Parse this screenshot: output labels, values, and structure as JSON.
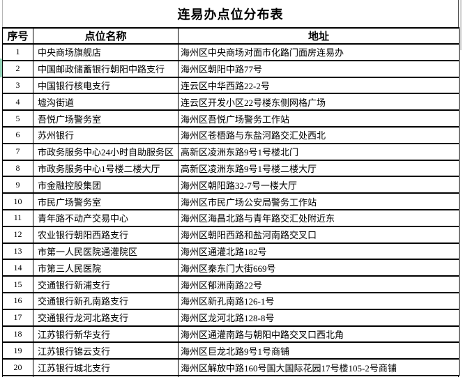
{
  "title": "连易办点位分布表",
  "table": {
    "headers": [
      "序号",
      "点位名称",
      "地址"
    ],
    "rows": [
      {
        "no": "1",
        "name": "中央商场旗舰店",
        "addr": "海州区中央商场对面市化路门面房连易办"
      },
      {
        "no": "2",
        "name": "中国邮政储蓄银行朝阳中路支行",
        "addr": "海州区朝阳中路77号"
      },
      {
        "no": "3",
        "name": "中国银行核电支行",
        "addr": "连云区中华西路22-2号"
      },
      {
        "no": "4",
        "name": "墟沟街道",
        "addr": "连云区开发小区22号楼东侧网格广场"
      },
      {
        "no": "5",
        "name": "吾悦广场警务室",
        "addr": "海州区吾悦广场警务工作站"
      },
      {
        "no": "6",
        "name": "苏州银行",
        "addr": "海州区苍梧路与东盐河路交汇处西北"
      },
      {
        "no": "7",
        "name": "市政务服务中心24小时自助服务区",
        "addr": "高新区凌洲东路9号1号楼北门"
      },
      {
        "no": "8",
        "name": "市政务服务中心1号楼二楼大厅",
        "addr": "高新区凌洲东路9号1号楼二楼大厅"
      },
      {
        "no": "9",
        "name": "市金融控股集团",
        "addr": "海州区朝阳路32-7号一楼大厅"
      },
      {
        "no": "10",
        "name": "市民广场警务室",
        "addr": "海州区市民广场公安局警务工作站"
      },
      {
        "no": "11",
        "name": "青年路不动产交易中心",
        "addr": "海州区海昌北路与青年路交汇处附近东"
      },
      {
        "no": "12",
        "name": "农业银行朝阳西路支行",
        "addr": "海州区朝阳西路和盐河南路交叉口"
      },
      {
        "no": "13",
        "name": "市第一人民医院通灌院区",
        "addr": "海州区通灌北路182号"
      },
      {
        "no": "14",
        "name": "市第三人民医院",
        "addr": "海州区秦东门大街669号"
      },
      {
        "no": "15",
        "name": "交通银行新浦支行",
        "addr": "海州区郁洲南路22号"
      },
      {
        "no": "16",
        "name": "交通银行新孔南路支行",
        "addr": "海州区新孔南路126-1号"
      },
      {
        "no": "17",
        "name": "交通银行龙河北路支行",
        "addr": "海州区龙河北路128-8号"
      },
      {
        "no": "18",
        "name": "江苏银行新华支行",
        "addr": "海州区通灌南路与朝阳中路交叉口西北角"
      },
      {
        "no": "19",
        "name": "江苏银行锦云支行",
        "addr": "海州区巨龙北路9号1号商铺"
      },
      {
        "no": "20",
        "name": "江苏银行城北支行",
        "addr": "海州区解放中路160号国大国际花园17号楼105-2号商铺"
      }
    ]
  },
  "colors": {
    "background": "#ffffff",
    "border": "#000000",
    "text": "#000000",
    "accent_strip": "#93d2b7"
  }
}
